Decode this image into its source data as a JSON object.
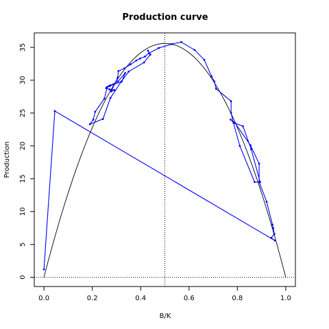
{
  "chart_data": {
    "type": "line",
    "title": "Production curve",
    "xlabel": "B/K",
    "ylabel": "Production",
    "xlim": [
      -0.04,
      1.04
    ],
    "ylim": [
      -1.4,
      37.2
    ],
    "x_ticks": [
      0.0,
      0.2,
      0.4,
      0.6,
      0.8,
      1.0
    ],
    "x_tick_labels": [
      "0.0",
      "0.2",
      "0.4",
      "0.6",
      "0.8",
      "1.0"
    ],
    "y_ticks": [
      0,
      5,
      10,
      15,
      20,
      25,
      30,
      35
    ],
    "y_tick_labels": [
      "0",
      "5",
      "10",
      "15",
      "20",
      "25",
      "30",
      "35"
    ],
    "reference_lines": {
      "vertical_x": 0.5,
      "horizontal_y": 0
    },
    "series": [
      {
        "kind": "production-curve",
        "color": "#000000",
        "function": "4 * 35.6 * x * (1 - x)",
        "x_range": [
          0.0,
          1.0
        ]
      },
      {
        "kind": "observed-trajectory",
        "color": "#0000ff",
        "x": [
          0.0,
          0.045,
          0.955,
          0.94,
          0.953,
          0.948,
          0.945,
          0.921,
          0.89,
          0.89,
          0.854,
          0.79,
          0.772,
          0.786,
          0.823,
          0.857,
          0.894,
          0.871,
          0.81,
          0.783,
          0.774,
          0.774,
          0.712,
          0.705,
          0.693,
          0.663,
          0.623,
          0.568,
          0.529,
          0.475,
          0.434,
          0.418,
          0.397,
          0.382,
          0.358,
          0.333,
          0.308,
          0.305,
          0.278,
          0.291,
          0.271,
          0.257,
          0.272,
          0.322,
          0.336,
          0.306,
          0.272,
          0.262,
          0.25,
          0.212,
          0.204,
          0.19,
          0.244,
          0.275,
          0.32,
          0.35,
          0.414,
          0.44,
          0.43
        ],
        "y": [
          1.2,
          25.3,
          5.6,
          6.0,
          6.6,
          7.5,
          8.0,
          11.5,
          14.5,
          17.3,
          20.1,
          23.5,
          24.0,
          23.5,
          23.0,
          19.5,
          14.5,
          14.5,
          20.0,
          23.6,
          25.0,
          26.8,
          28.7,
          29.8,
          30.6,
          33.1,
          34.6,
          35.8,
          35.5,
          34.9,
          34.1,
          33.6,
          33.3,
          33.0,
          32.4,
          31.8,
          31.4,
          30.4,
          28.3,
          28.5,
          28.6,
          28.8,
          29.1,
          29.8,
          31.1,
          29.8,
          29.2,
          29.0,
          27.2,
          25.2,
          24.0,
          23.3,
          24.1,
          27.3,
          29.8,
          31.3,
          32.7,
          33.9,
          34.5
        ]
      }
    ]
  }
}
